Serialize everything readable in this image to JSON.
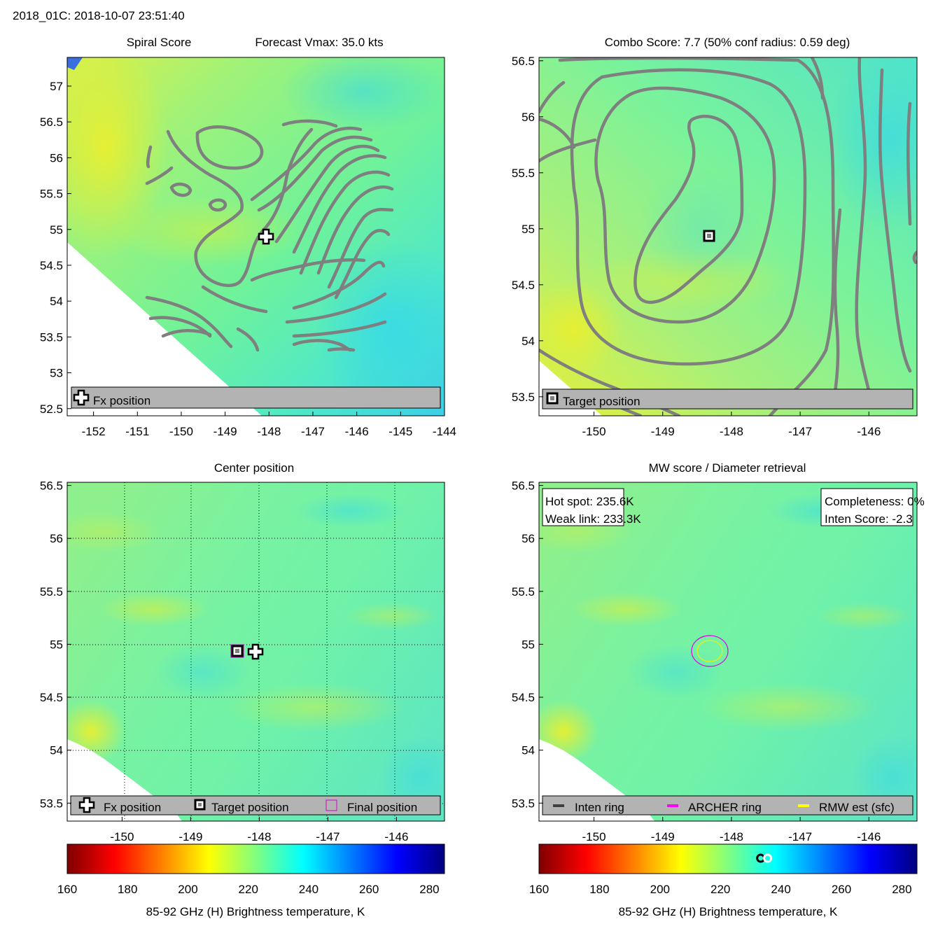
{
  "figure_title": "2018_01C: 2018-10-07 23:51:40",
  "colorbar": {
    "label": "85-92 GHz (H) Brightness temperature, K",
    "ticks": [
      "160",
      "180",
      "200",
      "220",
      "240",
      "260",
      "280"
    ],
    "min": 160,
    "max": 285,
    "colors": [
      "#7f0000",
      "#ff0000",
      "#ff8000",
      "#ffff00",
      "#80ff80",
      "#00ffff",
      "#0080ff",
      "#0000ff",
      "#00007f"
    ]
  },
  "chart_data": [
    {
      "id": "spiral",
      "type": "heatmap",
      "title": "Spiral Score",
      "subtitle": "Forecast Vmax: 35.0 kts",
      "xticks": [
        "-152",
        "-151",
        "-150",
        "-149",
        "-148",
        "-147",
        "-146",
        "-145",
        "-144"
      ],
      "yticks": [
        "57",
        "56.5",
        "56",
        "55.5",
        "55",
        "54.5",
        "54",
        "53.5",
        "53",
        "52.5"
      ],
      "xlim": [
        -152.6,
        -144
      ],
      "ylim": [
        52.4,
        57.4
      ],
      "legend": [
        "Fx position"
      ],
      "markers": [
        {
          "type": "fx",
          "lon": -148.0,
          "lat": 54.92
        }
      ]
    },
    {
      "id": "combo",
      "type": "heatmap",
      "title": "Combo Score: 7.7  (50% conf radius: 0.59 deg)",
      "xticks": [
        "-150",
        "-149",
        "-148",
        "-147",
        "-146"
      ],
      "yticks": [
        "56.5",
        "56",
        "55.5",
        "55",
        "54.5",
        "54",
        "53.5"
      ],
      "xlim": [
        -150.8,
        -145.3
      ],
      "ylim": [
        53.33,
        56.53
      ],
      "legend": [
        "Target position"
      ],
      "markers": [
        {
          "type": "target",
          "lon": -148.28,
          "lat": 54.93
        }
      ]
    },
    {
      "id": "center",
      "type": "heatmap",
      "title": "Center position",
      "xticks": [
        "-150",
        "-149",
        "-148",
        "-147",
        "-146"
      ],
      "yticks": [
        "56.5",
        "56",
        "55.5",
        "55",
        "54.5",
        "54",
        "53.5"
      ],
      "xlim": [
        -150.8,
        -145.3
      ],
      "ylim": [
        53.33,
        56.53
      ],
      "legend": [
        "Fx position",
        "Target position",
        "Final position"
      ],
      "markers": [
        {
          "type": "target",
          "lon": -148.28,
          "lat": 54.93
        },
        {
          "type": "fx",
          "lon": -148.02,
          "lat": 54.92
        }
      ]
    },
    {
      "id": "mw",
      "type": "heatmap",
      "title": "MW score / Diameter retrieval",
      "xticks": [
        "-150",
        "-149",
        "-148",
        "-147",
        "-146"
      ],
      "yticks": [
        "56.5",
        "56",
        "55.5",
        "55",
        "54.5",
        "54",
        "53.5"
      ],
      "xlim": [
        -150.8,
        -145.3
      ],
      "ylim": [
        53.33,
        56.53
      ],
      "legend": [
        "Inten ring",
        "ARCHER ring",
        "RMW est (sfc)"
      ],
      "info_left": [
        "Hot spot: 235.6K",
        "Weak link: 233.3K"
      ],
      "info_right": [
        "Completeness: 0%",
        "Inten Score: -2.3"
      ],
      "hot_spot_K": 235.6,
      "weak_link_K": 233.3
    }
  ]
}
